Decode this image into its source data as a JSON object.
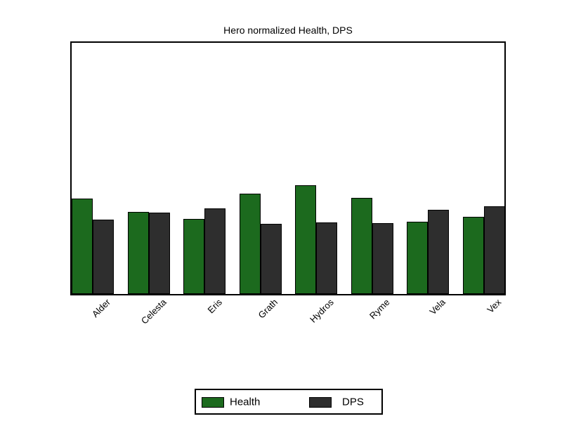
{
  "chart_data": {
    "type": "bar",
    "title": "Hero normalized Health, DPS",
    "categories": [
      "Alder",
      "Celesta",
      "Eris",
      "Grath",
      "Hydros",
      "Ryme",
      "Vela",
      "Vex"
    ],
    "series": [
      {
        "name": "Health",
        "color": "#1c6a1e",
        "values": [
          0.38,
          0.328,
          0.298,
          0.399,
          0.432,
          0.383,
          0.289,
          0.306
        ]
      },
      {
        "name": "DPS",
        "color": "#2e2e2e",
        "values": [
          0.295,
          0.325,
          0.341,
          0.279,
          0.284,
          0.283,
          0.334,
          0.349
        ]
      }
    ],
    "xlabel": "",
    "ylabel": "",
    "ylim": [
      0,
      1
    ],
    "grid": false,
    "y_ticks_shown": false,
    "legend_position": "bottom",
    "x_tick_label_rotation_deg": 45
  },
  "colors": {
    "health": "#1c6a1e",
    "dps": "#2e2e2e",
    "axis_border": "#000000",
    "background": "#ffffff"
  }
}
